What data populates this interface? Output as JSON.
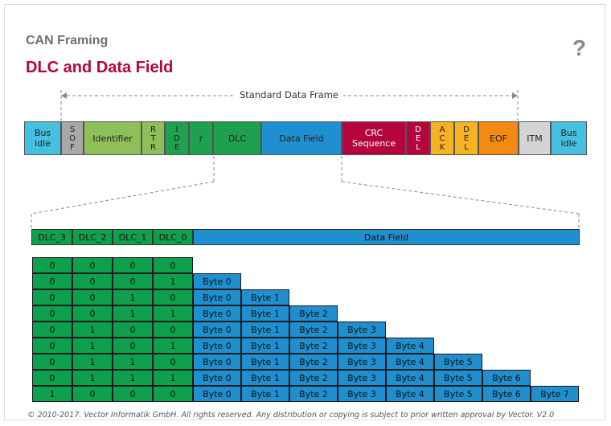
{
  "header": {
    "subtitle": "CAN Framing",
    "title": "DLC and Data Field",
    "help_icon": "?"
  },
  "frame": {
    "label": "Standard Data Frame",
    "segments": [
      {
        "name": "bus-idle-left",
        "text": "Bus\nidle",
        "color": "#45c0e0"
      },
      {
        "name": "sof",
        "text": "S\nO\nF",
        "color": "#a8a8a8"
      },
      {
        "name": "identifier",
        "text": "Identifier",
        "color": "#8fbf58"
      },
      {
        "name": "rtr",
        "text": "R\nT\nR",
        "color": "#8fbf58"
      },
      {
        "name": "ide",
        "text": "I\nD\nE",
        "color": "#1ea04e"
      },
      {
        "name": "r",
        "text": "r",
        "color": "#1ea04e"
      },
      {
        "name": "dlc",
        "text": "DLC",
        "color": "#1ea04e"
      },
      {
        "name": "data-field",
        "text": "Data Field",
        "color": "#1f8fd0"
      },
      {
        "name": "crc-sequence",
        "text": "CRC\nSequence",
        "color": "#b5053c"
      },
      {
        "name": "del-1",
        "text": "D\nE\nL",
        "color": "#b5053c"
      },
      {
        "name": "ack",
        "text": "A\nC\nK",
        "color": "#f5b323"
      },
      {
        "name": "del-2",
        "text": "D\nE\nL",
        "color": "#f5b323"
      },
      {
        "name": "eof",
        "text": "EOF",
        "color": "#f28a14"
      },
      {
        "name": "itm",
        "text": "ITM",
        "color": "#d4d4d4"
      },
      {
        "name": "bus-idle-right",
        "text": "Bus\nidle",
        "color": "#45c0e0"
      }
    ]
  },
  "dlc_table": {
    "headers": [
      "DLC_3",
      "DLC_2",
      "DLC_1",
      "DLC_0"
    ],
    "data_header": "Data Field",
    "rows": [
      {
        "bits": [
          "0",
          "0",
          "0",
          "0"
        ],
        "bytes": []
      },
      {
        "bits": [
          "0",
          "0",
          "0",
          "1"
        ],
        "bytes": [
          "Byte 0"
        ]
      },
      {
        "bits": [
          "0",
          "0",
          "1",
          "0"
        ],
        "bytes": [
          "Byte 0",
          "Byte 1"
        ]
      },
      {
        "bits": [
          "0",
          "0",
          "1",
          "1"
        ],
        "bytes": [
          "Byte 0",
          "Byte 1",
          "Byte 2"
        ]
      },
      {
        "bits": [
          "0",
          "1",
          "0",
          "0"
        ],
        "bytes": [
          "Byte 0",
          "Byte 1",
          "Byte 2",
          "Byte 3"
        ]
      },
      {
        "bits": [
          "0",
          "1",
          "0",
          "1"
        ],
        "bytes": [
          "Byte 0",
          "Byte 1",
          "Byte 2",
          "Byte 3",
          "Byte 4"
        ]
      },
      {
        "bits": [
          "0",
          "1",
          "1",
          "0"
        ],
        "bytes": [
          "Byte 0",
          "Byte 1",
          "Byte 2",
          "Byte 3",
          "Byte 4",
          "Byte 5"
        ]
      },
      {
        "bits": [
          "0",
          "1",
          "1",
          "1"
        ],
        "bytes": [
          "Byte 0",
          "Byte 1",
          "Byte 2",
          "Byte 3",
          "Byte 4",
          "Byte 5",
          "Byte 6"
        ]
      },
      {
        "bits": [
          "1",
          "0",
          "0",
          "0"
        ],
        "bytes": [
          "Byte 0",
          "Byte 1",
          "Byte 2",
          "Byte 3",
          "Byte 4",
          "Byte 5",
          "Byte 6",
          "Byte 7"
        ]
      }
    ]
  },
  "footer": "© 2010-2017. Vector Informatik GmbH. All rights reserved. Any distribution or copying is subject to prior written approval by Vector. V2.0"
}
